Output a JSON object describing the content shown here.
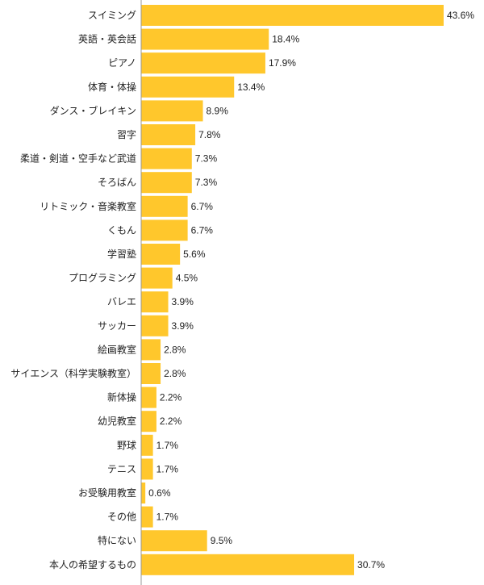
{
  "chart_data": {
    "type": "bar",
    "orientation": "horizontal",
    "categories": [
      "スイミング",
      "英語・英会話",
      "ピアノ",
      "体育・体操",
      "ダンス・ブレイキン",
      "習字",
      "柔道・剣道・空手など武道",
      "そろばん",
      "リトミック・音楽教室",
      "くもん",
      "学習塾",
      "プログラミング",
      "バレエ",
      "サッカー",
      "絵画教室",
      "サイエンス（科学実験教室）",
      "新体操",
      "幼児教室",
      "野球",
      "テニス",
      "お受験用教室",
      "その他",
      "特にない",
      "本人の希望するもの"
    ],
    "values": [
      43.6,
      18.4,
      17.9,
      13.4,
      8.9,
      7.8,
      7.3,
      7.3,
      6.7,
      6.7,
      5.6,
      4.5,
      3.9,
      3.9,
      2.8,
      2.8,
      2.2,
      2.2,
      1.7,
      1.7,
      0.6,
      1.7,
      9.5,
      30.7
    ],
    "value_labels": [
      "43.6%",
      "18.4%",
      "17.9%",
      "13.4%",
      "8.9%",
      "7.8%",
      "7.3%",
      "7.3%",
      "6.7%",
      "6.7%",
      "5.6%",
      "4.5%",
      "3.9%",
      "3.9%",
      "2.8%",
      "2.8%",
      "2.2%",
      "2.2%",
      "1.7%",
      "1.7%",
      "0.6%",
      "1.7%",
      "9.5%",
      "30.7%"
    ],
    "unit": "%",
    "xlim": [
      0,
      50
    ],
    "grid": false,
    "legend": "none",
    "bar_color": "#FFC72C",
    "axis_color": "#999999"
  }
}
